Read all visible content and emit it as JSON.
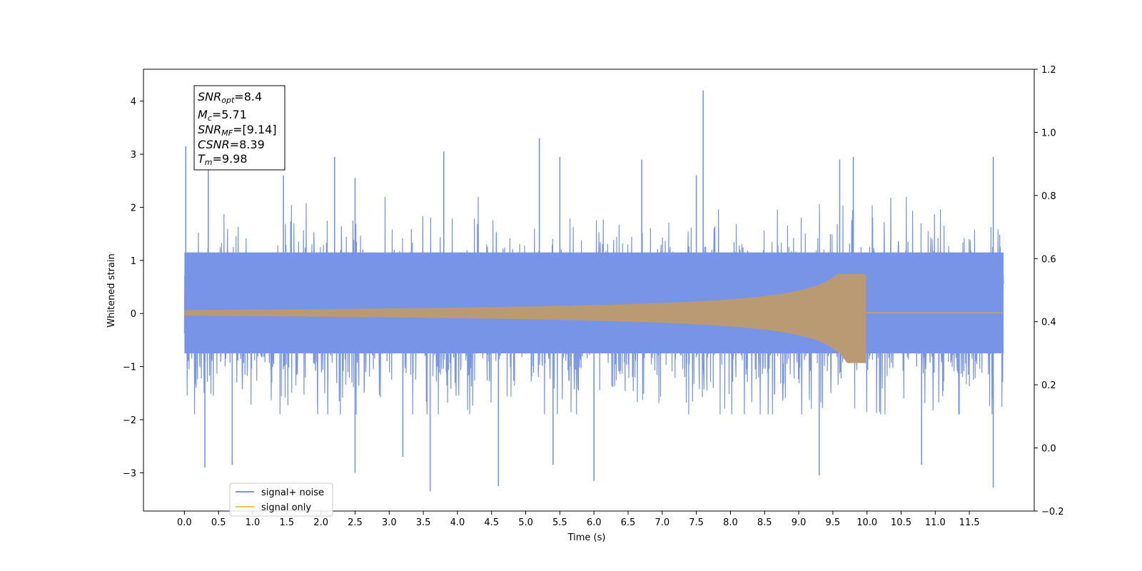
{
  "chart_data": {
    "type": "line",
    "xlabel": "Time (s)",
    "ylabel": "Whitened strain",
    "x_ticks": [
      "0.0",
      "0.5",
      "1.0",
      "1.5",
      "2.0",
      "2.5",
      "3.0",
      "3.5",
      "4.0",
      "4.5",
      "5.0",
      "5.5",
      "6.0",
      "6.5",
      "7.0",
      "7.5",
      "8.0",
      "8.5",
      "9.0",
      "9.5",
      "10.0",
      "10.5",
      "11.0",
      "11.5"
    ],
    "y_ticks_left": [
      "4",
      "3",
      "2",
      "1",
      "0",
      "−1",
      "−2",
      "−3"
    ],
    "y_ticks_right": [
      "1.2",
      "1.0",
      "0.8",
      "0.6",
      "0.4",
      "0.2",
      "0.0",
      "−0.2"
    ],
    "xlim": [
      -0.6,
      12.45
    ],
    "ylim_left": [
      -3.72,
      4.6
    ],
    "ylim_right": [
      -0.2,
      1.2
    ],
    "grid": false,
    "legend_position": "bottom-left",
    "annotation_box": {
      "position": "top-left",
      "lines": [
        {
          "sym": "SNR",
          "sub": "opt",
          "rest": "=8.4"
        },
        {
          "sym": "M",
          "sub": "c",
          "rest": "=5.71"
        },
        {
          "sym": "SNR",
          "sub": "MF",
          "rest": "=[9.14]"
        },
        {
          "sym": "CSNR",
          "sub": "",
          "rest": "=8.39"
        },
        {
          "sym": "T",
          "sub": "m",
          "rest": "=9.98"
        }
      ]
    },
    "series": [
      {
        "name": "signal+ noise",
        "axis": "left",
        "color": "#7894e6",
        "x_range": [
          0.0,
          12.0
        ],
        "typical_range": [
          -1.9,
          2.2
        ],
        "peaks": [
          {
            "x": 0.02,
            "y": 3.15
          },
          {
            "x": 0.35,
            "y": 2.7
          },
          {
            "x": 1.45,
            "y": 2.6
          },
          {
            "x": 2.2,
            "y": 2.95
          },
          {
            "x": 2.5,
            "y": 2.55
          },
          {
            "x": 3.8,
            "y": 3.05
          },
          {
            "x": 5.2,
            "y": 3.3
          },
          {
            "x": 5.5,
            "y": 2.95
          },
          {
            "x": 6.7,
            "y": 2.9
          },
          {
            "x": 7.5,
            "y": 2.6
          },
          {
            "x": 7.6,
            "y": 4.2
          },
          {
            "x": 9.6,
            "y": 2.9
          },
          {
            "x": 9.8,
            "y": 2.95
          },
          {
            "x": 11.85,
            "y": 2.95
          },
          {
            "x": 0.3,
            "y": -2.9
          },
          {
            "x": 0.7,
            "y": -2.85
          },
          {
            "x": 2.5,
            "y": -3.0
          },
          {
            "x": 3.2,
            "y": -2.7
          },
          {
            "x": 3.6,
            "y": -3.35
          },
          {
            "x": 4.6,
            "y": -3.25
          },
          {
            "x": 5.4,
            "y": -2.85
          },
          {
            "x": 6.0,
            "y": -3.15
          },
          {
            "x": 9.3,
            "y": -3.05
          },
          {
            "x": 10.8,
            "y": -2.85
          },
          {
            "x": 11.85,
            "y": -3.28
          }
        ]
      },
      {
        "name": "signal only",
        "axis": "right",
        "color": "#ffc24d",
        "x_range": [
          0.0,
          12.0
        ],
        "center": 0.428,
        "amplitude_start": 0.008,
        "amplitude_peak_upper": 0.55,
        "amplitude_peak_lower": 0.27,
        "merger_time": 9.98
      }
    ]
  }
}
